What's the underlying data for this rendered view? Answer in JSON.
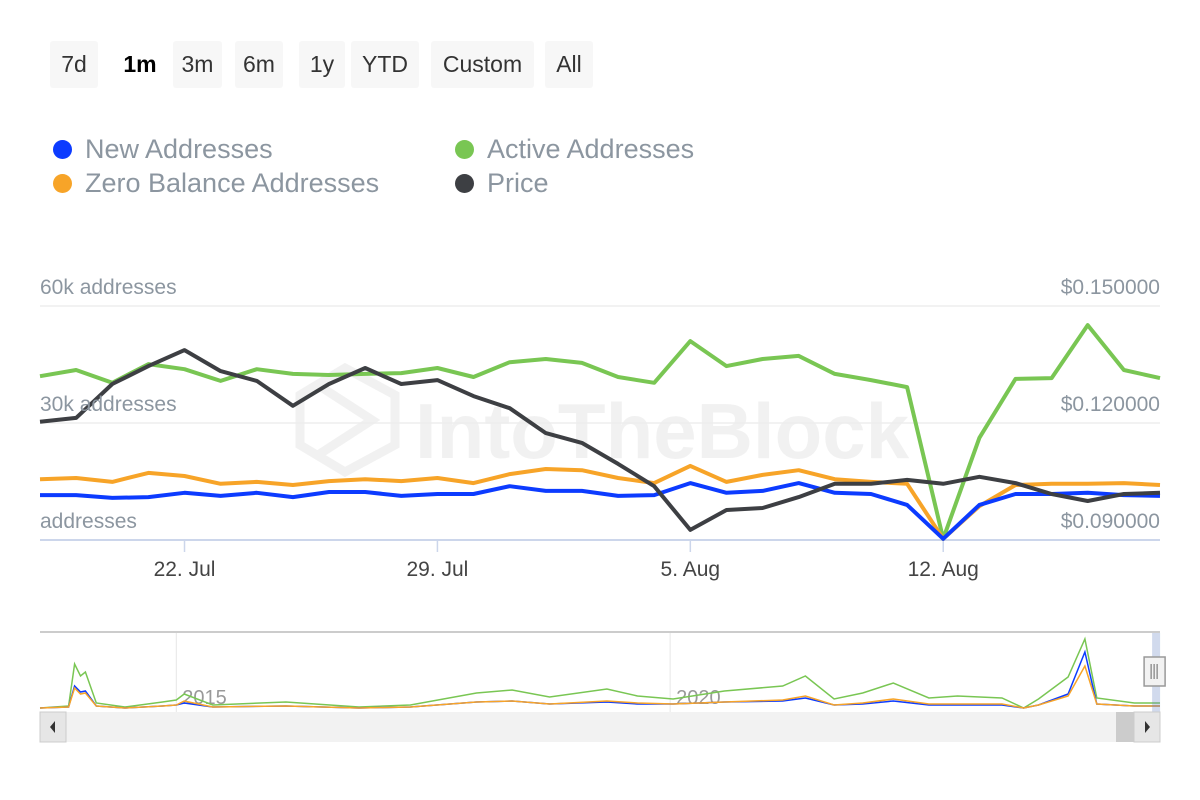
{
  "range_buttons": [
    {
      "label": "7d",
      "selected": false
    },
    {
      "label": "1m",
      "selected": true
    },
    {
      "label": "3m",
      "selected": false
    },
    {
      "label": "6m",
      "selected": false
    },
    {
      "label": "1y",
      "selected": false
    },
    {
      "label": "YTD",
      "selected": false
    },
    {
      "label": "Custom",
      "selected": false
    },
    {
      "label": "All",
      "selected": false
    }
  ],
  "watermark": "IntoTheBlock",
  "chart_data": {
    "type": "line",
    "legend_placement": "top-left",
    "legend": [
      {
        "name": "New Addresses",
        "color": "#0c3bff"
      },
      {
        "name": "Active Addresses",
        "color": "#79c653"
      },
      {
        "name": "Zero Balance Addresses",
        "color": "#f7a428"
      },
      {
        "name": "Price",
        "color": "#3d3f43"
      }
    ],
    "x": [
      "18 Jul",
      "19 Jul",
      "20 Jul",
      "21 Jul",
      "22 Jul",
      "23 Jul",
      "24 Jul",
      "25 Jul",
      "26 Jul",
      "27 Jul",
      "28 Jul",
      "29 Jul",
      "30 Jul",
      "31 Jul",
      "1 Aug",
      "2 Aug",
      "3 Aug",
      "4 Aug",
      "5 Aug",
      "6 Aug",
      "7 Aug",
      "8 Aug",
      "9 Aug",
      "10 Aug",
      "11 Aug",
      "12 Aug",
      "13 Aug",
      "14 Aug",
      "15 Aug",
      "16 Aug",
      "17 Aug",
      "18 Aug"
    ],
    "x_ticks": [
      {
        "label": "22. Jul",
        "index": 4
      },
      {
        "label": "29. Jul",
        "index": 11
      },
      {
        "label": "5. Aug",
        "index": 18
      },
      {
        "label": "12. Aug",
        "index": 25
      }
    ],
    "left_axis": {
      "unit": "k addresses",
      "ylim": [
        0,
        60
      ],
      "ticks": [
        {
          "label": "60k addresses",
          "value": 60
        },
        {
          "label": "30k addresses",
          "value": 30
        },
        {
          "label": "addresses",
          "value": 0
        }
      ]
    },
    "right_axis": {
      "unit": "USD",
      "ylim": [
        0.09,
        0.15
      ],
      "ticks": [
        {
          "label": "$0.150000",
          "value": 0.15
        },
        {
          "label": "$0.120000",
          "value": 0.12
        },
        {
          "label": "$0.090000",
          "value": 0.09
        }
      ]
    },
    "series": [
      {
        "name": "Active Addresses",
        "axis": "left",
        "color": "#79c653",
        "values": [
          42.0,
          43.6,
          40.3,
          45.1,
          43.8,
          40.8,
          43.8,
          42.6,
          42.3,
          42.6,
          42.8,
          44.1,
          41.8,
          45.6,
          46.4,
          45.4,
          41.8,
          40.3,
          51.0,
          44.6,
          46.4,
          47.2,
          42.6,
          41.0,
          39.2,
          0.3,
          26.2,
          41.3,
          41.5,
          55.1,
          43.6,
          41.5
        ]
      },
      {
        "name": "Zero Balance Addresses",
        "axis": "left",
        "color": "#f7a428",
        "values": [
          15.6,
          15.9,
          14.9,
          17.2,
          16.4,
          14.4,
          14.9,
          14.1,
          15.1,
          15.6,
          15.1,
          15.9,
          14.6,
          16.9,
          18.2,
          17.9,
          15.9,
          14.6,
          19.0,
          14.9,
          16.7,
          17.9,
          15.6,
          14.9,
          14.4,
          0.3,
          8.7,
          14.1,
          14.4,
          14.4,
          14.6,
          14.1
        ]
      },
      {
        "name": "New Addresses",
        "axis": "left",
        "color": "#0c3bff",
        "values": [
          11.5,
          11.5,
          10.8,
          11.0,
          12.1,
          11.3,
          12.1,
          11.0,
          12.3,
          12.3,
          11.3,
          11.8,
          11.8,
          13.8,
          12.6,
          12.6,
          11.3,
          11.5,
          14.6,
          12.1,
          12.6,
          14.6,
          12.1,
          11.8,
          9.0,
          0.3,
          9.0,
          11.8,
          11.8,
          12.1,
          11.5,
          11.3
        ]
      },
      {
        "name": "Price",
        "axis": "right",
        "color": "#3d3f43",
        "values": [
          0.1203,
          0.1213,
          0.13,
          0.1346,
          0.1387,
          0.1333,
          0.1308,
          0.1244,
          0.13,
          0.1341,
          0.13,
          0.131,
          0.1269,
          0.1238,
          0.1174,
          0.1149,
          0.1095,
          0.1038,
          0.0926,
          0.0977,
          0.0982,
          0.101,
          0.1044,
          0.1044,
          0.1054,
          0.1044,
          0.1062,
          0.1046,
          0.1018,
          0.1,
          0.1018,
          0.1021
        ]
      }
    ],
    "navigator": {
      "xlim": [
        2013.62,
        2024.96
      ],
      "ticks": [
        {
          "label": "2015",
          "value": 2015
        },
        {
          "label": "2020",
          "value": 2020
        }
      ],
      "years": [
        2013.91,
        2013.97,
        2014.03,
        2014.08,
        2014.19,
        2014.48,
        2014.86,
        2015.0,
        2015.08,
        2015.37,
        2016.11,
        2016.85,
        2017.37,
        2018.04,
        2018.4,
        2018.78,
        2019.36,
        2019.67,
        2020.03,
        2020.55,
        2021.14,
        2021.37,
        2021.66,
        2021.95,
        2022.26,
        2022.62,
        2022.91,
        2023.36,
        2023.58,
        2023.73,
        2024.03,
        2024.2,
        2024.32,
        2024.7
      ],
      "active": [
        2,
        44,
        32,
        36,
        5,
        1,
        6,
        8,
        14,
        3,
        6,
        1,
        3,
        15,
        18,
        11,
        19,
        12,
        9,
        17,
        22,
        32,
        9,
        15,
        25,
        10,
        12,
        10,
        0,
        9,
        31,
        69,
        10,
        5
      ],
      "zero_balance": [
        1,
        20,
        14,
        15,
        2,
        0,
        2,
        3,
        7,
        1,
        2,
        0,
        1,
        6,
        7,
        4,
        7,
        5,
        4,
        6,
        8,
        12,
        3,
        5,
        9,
        4,
        4,
        4,
        0,
        3,
        12,
        42,
        4,
        2
      ],
      "new": [
        1,
        22,
        16,
        17,
        2,
        0,
        2,
        3,
        5,
        1,
        2,
        0,
        1,
        6,
        7,
        4,
        6,
        4,
        4,
        6,
        7,
        10,
        3,
        4,
        7,
        3,
        3,
        3,
        0,
        3,
        14,
        56,
        4,
        2
      ],
      "ylim": [
        0,
        75
      ],
      "selection": [
        2024.88,
        2024.96
      ]
    }
  }
}
